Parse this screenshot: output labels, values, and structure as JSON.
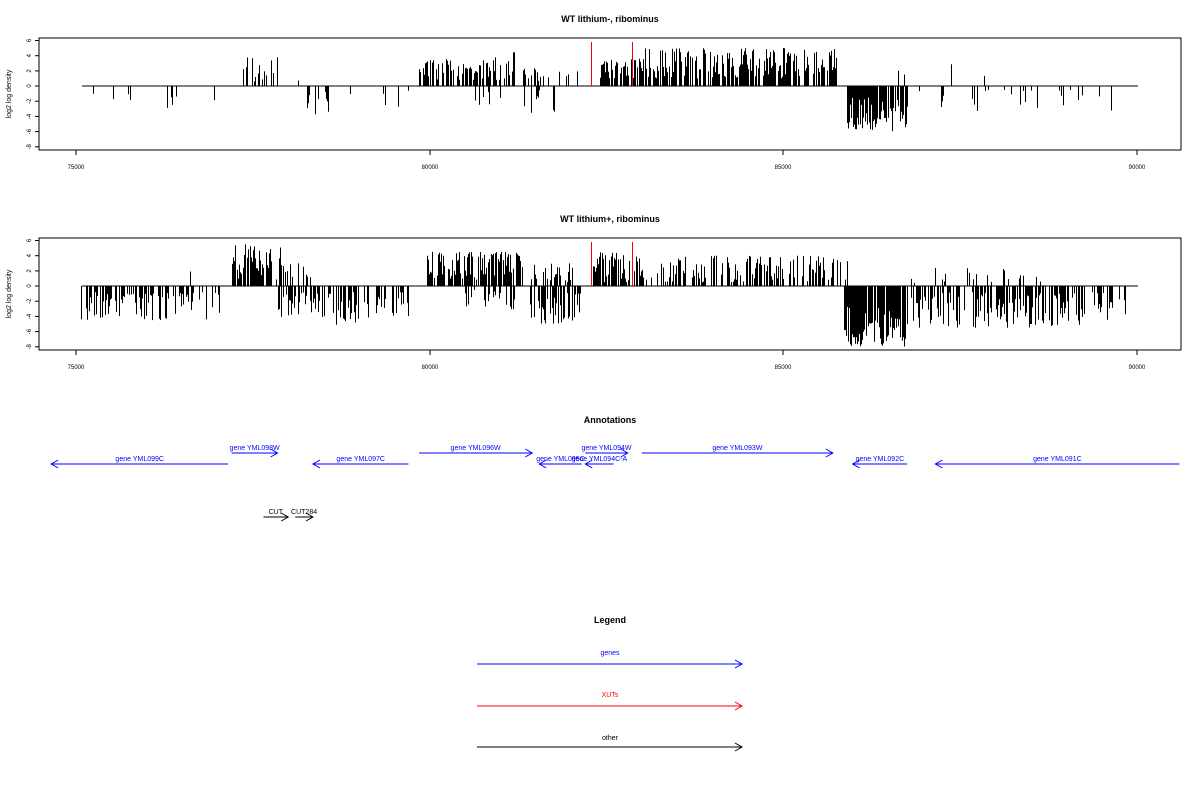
{
  "panels": [
    {
      "title": "WT lithium-, ribominus",
      "ylabel": "log2 log density",
      "yticks": [
        "6",
        "4",
        "2",
        "0",
        "-2",
        "-4",
        "-6",
        "-8"
      ],
      "xticks": [
        "75000",
        "80000",
        "85000",
        "90000"
      ]
    },
    {
      "title": "WT lithium+, ribominus",
      "ylabel": "log2 log density",
      "yticks": [
        "6",
        "4",
        "2",
        "0",
        "-2",
        "-4",
        "-6",
        "-8"
      ],
      "xticks": [
        "75000",
        "80000",
        "85000",
        "90000"
      ]
    }
  ],
  "annotations": {
    "title": "Annotations",
    "genes": [
      {
        "label": "gene YML099C",
        "start": 74650,
        "end": 77150,
        "strand": "-",
        "row": 1
      },
      {
        "label": "gene YML098W",
        "start": 77200,
        "end": 77850,
        "strand": "+",
        "row": 0
      },
      {
        "label": "gene YML097C",
        "start": 78350,
        "end": 79700,
        "strand": "-",
        "row": 1
      },
      {
        "label": "gene YML096W",
        "start": 79850,
        "end": 81450,
        "strand": "+",
        "row": 0
      },
      {
        "label": "gene YML095C",
        "start": 81550,
        "end": 82150,
        "strand": "-",
        "row": 1
      },
      {
        "label": "gene YML094W",
        "start": 82200,
        "end": 82800,
        "strand": "+",
        "row": 0
      },
      {
        "label": "gene YML094C-A",
        "start": 82200,
        "end": 82600,
        "strand": "-",
        "row": 1
      },
      {
        "label": "gene YML093W",
        "start": 83000,
        "end": 85700,
        "strand": "+",
        "row": 0
      },
      {
        "label": "gene YML092C",
        "start": 85980,
        "end": 86750,
        "strand": "-",
        "row": 1
      },
      {
        "label": "gene YML091C",
        "start": 87150,
        "end": 90600,
        "strand": "-",
        "row": 1
      }
    ],
    "other": [
      {
        "label": "CUT",
        "start": 77650,
        "end": 78000,
        "strand": "+",
        "row": 0
      },
      {
        "label": "CUT284",
        "start": 78100,
        "end": 78350,
        "strand": "+",
        "row": 0
      }
    ]
  },
  "legend": {
    "title": "Legend",
    "items": [
      {
        "label": "genes",
        "color": "#0000ff"
      },
      {
        "label": "XUTs",
        "color": "#ff0000"
      },
      {
        "label": "other",
        "color": "#000000"
      }
    ]
  },
  "chart_data": [
    {
      "type": "bar",
      "title": "WT lithium-, ribominus",
      "xlabel": "",
      "ylabel": "log2 log density",
      "xlim": [
        74600,
        90700
      ],
      "ylim": [
        -8,
        6
      ],
      "grid": false,
      "xut_markers": [
        82280,
        82860
      ],
      "segments": [
        {
          "start": 75100,
          "end": 75300,
          "density": 0.04,
          "dir": -1,
          "amp": [
            0.8,
            2.5
          ]
        },
        {
          "start": 75450,
          "end": 76650,
          "density": 0.07,
          "dir": -1,
          "amp": [
            0.8,
            3.6
          ]
        },
        {
          "start": 76700,
          "end": 77000,
          "density": 0.03,
          "dir": -1,
          "amp": [
            0.6,
            2.0
          ]
        },
        {
          "start": 77350,
          "end": 77850,
          "density": 0.4,
          "dir": 1,
          "amp": [
            0.5,
            3.8
          ]
        },
        {
          "start": 78000,
          "end": 78250,
          "density": 0.02,
          "dir": 1,
          "amp": [
            0.3,
            2.5
          ]
        },
        {
          "start": 78250,
          "end": 78700,
          "density": 0.25,
          "dir": -1,
          "amp": [
            0.5,
            3.8
          ]
        },
        {
          "start": 78800,
          "end": 79700,
          "density": 0.06,
          "dir": -1,
          "amp": [
            0.5,
            4.0
          ]
        },
        {
          "start": 79850,
          "end": 80900,
          "density": 0.8,
          "dir": 1,
          "amp": [
            0.8,
            3.6
          ]
        },
        {
          "start": 80900,
          "end": 81200,
          "density": 0.6,
          "dir": 1,
          "amp": [
            0.8,
            4.5
          ]
        },
        {
          "start": 80600,
          "end": 81000,
          "density": 0.15,
          "dir": -1,
          "amp": [
            0.5,
            2.5
          ]
        },
        {
          "start": 81300,
          "end": 81700,
          "density": 0.5,
          "dir": 1,
          "amp": [
            0.5,
            3.0
          ]
        },
        {
          "start": 81300,
          "end": 81800,
          "density": 0.2,
          "dir": -1,
          "amp": [
            0.5,
            3.6
          ]
        },
        {
          "start": 81800,
          "end": 82100,
          "density": 0.2,
          "dir": 1,
          "amp": [
            0.3,
            2.0
          ]
        },
        {
          "start": 82400,
          "end": 82850,
          "density": 1.0,
          "dir": 1,
          "amp": [
            0.8,
            3.5
          ]
        },
        {
          "start": 82850,
          "end": 85750,
          "density": 0.9,
          "dir": 1,
          "amp": [
            1.0,
            5.0
          ]
        },
        {
          "start": 85900,
          "end": 86750,
          "density": 1.6,
          "dir": -1,
          "amp": [
            1.5,
            6.0
          ]
        },
        {
          "start": 86600,
          "end": 86800,
          "density": 0.1,
          "dir": 1,
          "amp": [
            0.3,
            2.2
          ]
        },
        {
          "start": 86900,
          "end": 87300,
          "density": 0.05,
          "dir": -1,
          "amp": [
            0.3,
            2.0
          ]
        },
        {
          "start": 87200,
          "end": 88100,
          "density": 0.08,
          "dir": -1,
          "amp": [
            0.5,
            4.2
          ]
        },
        {
          "start": 87350,
          "end": 87400,
          "density": 0.05,
          "dir": 1,
          "amp": [
            2.5,
            3.0
          ]
        },
        {
          "start": 87800,
          "end": 87850,
          "density": 0.05,
          "dir": 1,
          "amp": [
            1.0,
            1.5
          ]
        },
        {
          "start": 88100,
          "end": 89700,
          "density": 0.1,
          "dir": -1,
          "amp": [
            0.5,
            4.5
          ]
        }
      ]
    },
    {
      "type": "bar",
      "title": "WT lithium+, ribominus",
      "xlabel": "",
      "ylabel": "log2 log density",
      "xlim": [
        74600,
        90700
      ],
      "ylim": [
        -8,
        6
      ],
      "grid": false,
      "xut_markers": [
        82280,
        82860
      ],
      "segments": [
        {
          "start": 75050,
          "end": 76400,
          "density": 0.55,
          "dir": -1,
          "amp": [
            0.8,
            4.5
          ]
        },
        {
          "start": 76400,
          "end": 77050,
          "density": 0.3,
          "dir": -1,
          "amp": [
            0.8,
            4.8
          ]
        },
        {
          "start": 76600,
          "end": 76650,
          "density": 0.04,
          "dir": 1,
          "amp": [
            1.5,
            2.2
          ]
        },
        {
          "start": 77200,
          "end": 77900,
          "density": 1.2,
          "dir": 1,
          "amp": [
            0.8,
            5.5
          ]
        },
        {
          "start": 77900,
          "end": 78350,
          "density": 0.25,
          "dir": 1,
          "amp": [
            0.5,
            3.0
          ]
        },
        {
          "start": 77850,
          "end": 78600,
          "density": 0.6,
          "dir": -1,
          "amp": [
            0.8,
            4.2
          ]
        },
        {
          "start": 78600,
          "end": 79700,
          "density": 0.5,
          "dir": -1,
          "amp": [
            0.8,
            5.2
          ]
        },
        {
          "start": 79950,
          "end": 81350,
          "density": 1.0,
          "dir": 1,
          "amp": [
            0.8,
            4.5
          ]
        },
        {
          "start": 80500,
          "end": 81200,
          "density": 0.4,
          "dir": -1,
          "amp": [
            0.5,
            3.2
          ]
        },
        {
          "start": 81400,
          "end": 82150,
          "density": 0.6,
          "dir": -1,
          "amp": [
            0.8,
            5.3
          ]
        },
        {
          "start": 81350,
          "end": 82100,
          "density": 0.3,
          "dir": 1,
          "amp": [
            0.5,
            3.0
          ]
        },
        {
          "start": 82300,
          "end": 82900,
          "density": 0.9,
          "dir": 1,
          "amp": [
            0.5,
            4.5
          ]
        },
        {
          "start": 82900,
          "end": 85900,
          "density": 0.5,
          "dir": 1,
          "amp": [
            0.5,
            4.0
          ]
        },
        {
          "start": 85850,
          "end": 86750,
          "density": 2.0,
          "dir": -1,
          "amp": [
            2.0,
            8.0
          ]
        },
        {
          "start": 86700,
          "end": 86900,
          "density": 0.1,
          "dir": 1,
          "amp": [
            0.3,
            1.5
          ]
        },
        {
          "start": 86800,
          "end": 89300,
          "density": 0.7,
          "dir": -1,
          "amp": [
            0.8,
            5.5
          ]
        },
        {
          "start": 87100,
          "end": 88700,
          "density": 0.12,
          "dir": 1,
          "amp": [
            0.5,
            2.4
          ]
        },
        {
          "start": 89300,
          "end": 89900,
          "density": 0.35,
          "dir": -1,
          "amp": [
            0.8,
            4.5
          ]
        }
      ]
    }
  ]
}
